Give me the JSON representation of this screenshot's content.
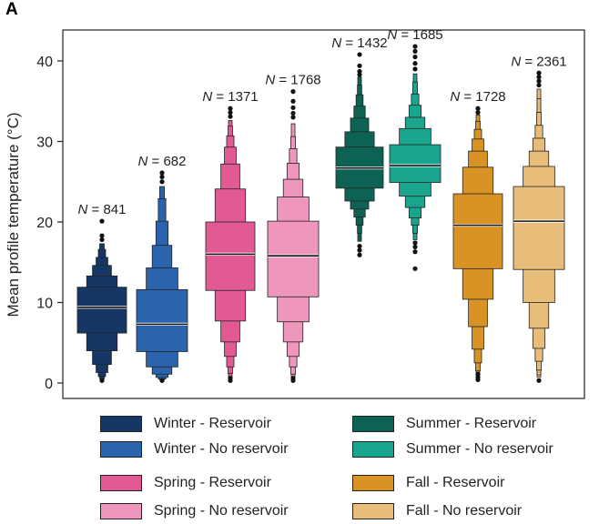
{
  "panel_label": "A",
  "colors": {
    "Winter - Reservoir": "#163763",
    "Winter - No reservoir": "#2b63ad",
    "Spring - Reservoir": "#e25a93",
    "Spring - No reservoir": "#ee96bc",
    "Summer - Reservoir": "#0d6353",
    "Summer - No reservoir": "#1aa68e",
    "Fall - Reservoir": "#d99325",
    "Fall - No reservoir": "#e8bd7a"
  },
  "legend": [
    {
      "label": "Winter - Reservoir"
    },
    {
      "label": "Winter - No reservoir"
    },
    {
      "label": "Spring - Reservoir"
    },
    {
      "label": "Spring - No reservoir"
    },
    {
      "label": "Summer - Reservoir"
    },
    {
      "label": "Summer - No reservoir"
    },
    {
      "label": "Fall - Reservoir"
    },
    {
      "label": "Fall - No reservoir"
    }
  ],
  "chart_data": {
    "type": "boxen (letter-value) plot",
    "title": "",
    "xlabel": "",
    "ylabel": "Mean profile temperature (°C)",
    "ylim": [
      0,
      45
    ],
    "yticks": [
      0,
      10,
      20,
      30,
      40
    ],
    "legend_position": "bottom",
    "series": [
      {
        "name": "Winter - Reservoir",
        "n_label": "N = 841",
        "median": 9.4,
        "levels": [
          [
            6.2,
            11.9
          ],
          [
            4.0,
            13.3
          ],
          [
            2.3,
            14.6
          ],
          [
            1.3,
            15.6
          ],
          [
            0.8,
            16.6
          ],
          [
            0.5,
            17.3
          ]
        ],
        "outliers": [
          0.3,
          17.8,
          18.3,
          20.1
        ]
      },
      {
        "name": "Winter - No reservoir",
        "n_label": "N = 682",
        "median": 7.3,
        "levels": [
          [
            3.9,
            11.6
          ],
          [
            2.0,
            14.3
          ],
          [
            1.1,
            17.1
          ],
          [
            0.7,
            20.1
          ],
          [
            0.5,
            22.9
          ],
          [
            0.4,
            24.4
          ]
        ],
        "outliers": [
          0.3,
          25.0,
          25.6,
          26.1
        ]
      },
      {
        "name": "Spring - Reservoir",
        "n_label": "N = 1371",
        "median": 16.0,
        "levels": [
          [
            11.5,
            20.0
          ],
          [
            7.7,
            24.1
          ],
          [
            5.1,
            27.2
          ],
          [
            3.3,
            29.3
          ],
          [
            2.0,
            30.7
          ],
          [
            1.2,
            31.9
          ],
          [
            0.7,
            32.6
          ]
        ],
        "outliers": [
          0.3,
          0.6,
          33.1,
          33.6,
          34.1
        ]
      },
      {
        "name": "Spring - No reservoir",
        "n_label": "N = 1768",
        "median": 15.8,
        "levels": [
          [
            10.7,
            20.1
          ],
          [
            7.6,
            23.1
          ],
          [
            5.1,
            25.3
          ],
          [
            3.3,
            27.3
          ],
          [
            2.0,
            29.1
          ],
          [
            1.1,
            30.6
          ],
          [
            0.6,
            32.2
          ]
        ],
        "outliers": [
          0.3,
          0.6,
          33.0,
          33.5,
          34.2,
          35.0,
          36.2
        ]
      },
      {
        "name": "Summer - Reservoir",
        "n_label": "N = 1432",
        "median": 26.7,
        "levels": [
          [
            24.2,
            29.3
          ],
          [
            22.6,
            31.2
          ],
          [
            21.6,
            32.9
          ],
          [
            20.6,
            34.4
          ],
          [
            19.6,
            35.8
          ],
          [
            18.6,
            37.0
          ],
          [
            17.6,
            38.0
          ]
        ],
        "outliers": [
          15.9,
          16.5,
          17.0,
          38.3,
          38.7,
          39.4,
          40.8
        ]
      },
      {
        "name": "Summer - No reservoir",
        "n_label": "N = 1685",
        "median": 27.0,
        "levels": [
          [
            24.9,
            29.6
          ],
          [
            23.2,
            31.6
          ],
          [
            21.8,
            33.0
          ],
          [
            20.5,
            34.5
          ],
          [
            19.6,
            35.9
          ],
          [
            18.6,
            37.4
          ],
          [
            17.8,
            38.4
          ]
        ],
        "outliers": [
          14.2,
          16.3,
          16.9,
          17.4,
          39.0,
          39.7,
          40.5,
          41.2,
          41.8
        ]
      },
      {
        "name": "Fall - Reservoir",
        "n_label": "N = 1728",
        "median": 19.6,
        "levels": [
          [
            14.2,
            23.5
          ],
          [
            10.4,
            26.8
          ],
          [
            7.0,
            28.8
          ],
          [
            4.2,
            30.3
          ],
          [
            2.5,
            31.5
          ],
          [
            1.5,
            32.5
          ],
          [
            0.9,
            33.3
          ]
        ],
        "outliers": [
          0.4,
          0.7,
          1.1,
          33.6,
          34.1
        ]
      },
      {
        "name": "Fall - No reservoir",
        "n_label": "N = 2361",
        "median": 20.1,
        "levels": [
          [
            14.1,
            24.4
          ],
          [
            10.0,
            26.9
          ],
          [
            6.8,
            28.8
          ],
          [
            4.3,
            30.4
          ],
          [
            2.7,
            32.0
          ],
          [
            1.6,
            33.6
          ],
          [
            1.0,
            35.3
          ],
          [
            0.7,
            36.5
          ]
        ],
        "outliers": [
          0.3,
          37.0,
          37.5,
          38.0,
          38.5
        ]
      }
    ]
  }
}
